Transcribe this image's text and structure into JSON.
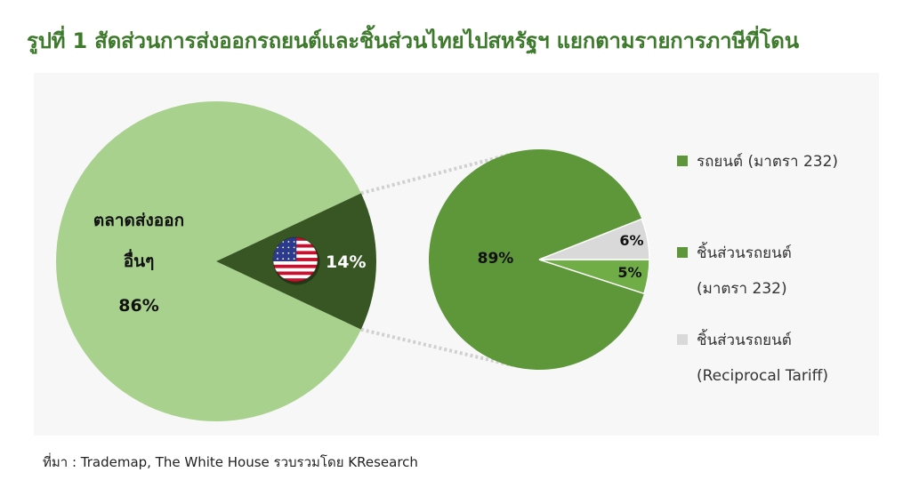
{
  "title": "รูปที่ 1 สัดส่วนการส่งออกรถยนต์และชิ้นส่วนไทยไปสหรัฐฯ แยกตามรายการภาษีที่โดน",
  "source": "ที่มา : Trademap, The White House รวบรวมโดย KResearch",
  "chart_data": [
    {
      "type": "pie",
      "slices": [
        {
          "label_lines": [
            "ตลาดส่งออก",
            "อื่นๆ"
          ],
          "percent_label": "86%",
          "value": 86,
          "color": "#a9d18e"
        },
        {
          "label_lines": [],
          "percent_label": "14%",
          "value": 14,
          "color": "#375623",
          "icon": "us-flag-icon"
        }
      ]
    },
    {
      "type": "pie",
      "slices": [
        {
          "percent_label": "89%",
          "value": 89,
          "color": "#5e963a",
          "legend_lines": [
            "รถยนต์ (มาตรา 232)"
          ]
        },
        {
          "percent_label": "5%",
          "value": 5,
          "color": "#70ad47",
          "legend_lines": [
            "ชิ้นส่วนรถยนต์",
            "(มาตรา 232)"
          ]
        },
        {
          "percent_label": "6%",
          "value": 6,
          "color": "#d9d9d9",
          "legend_lines": [
            "ชิ้นส่วนรถยนต์",
            "(Reciprocal Tariff)"
          ]
        }
      ]
    }
  ],
  "colors": {
    "title": "#3d7a2b",
    "panel_bg": "#f7f7f7",
    "connector": "#d0d0d0",
    "legend_square_1": "#5e963a",
    "legend_square_2": "#5e963a",
    "legend_square_3": "#d9d9d9"
  }
}
